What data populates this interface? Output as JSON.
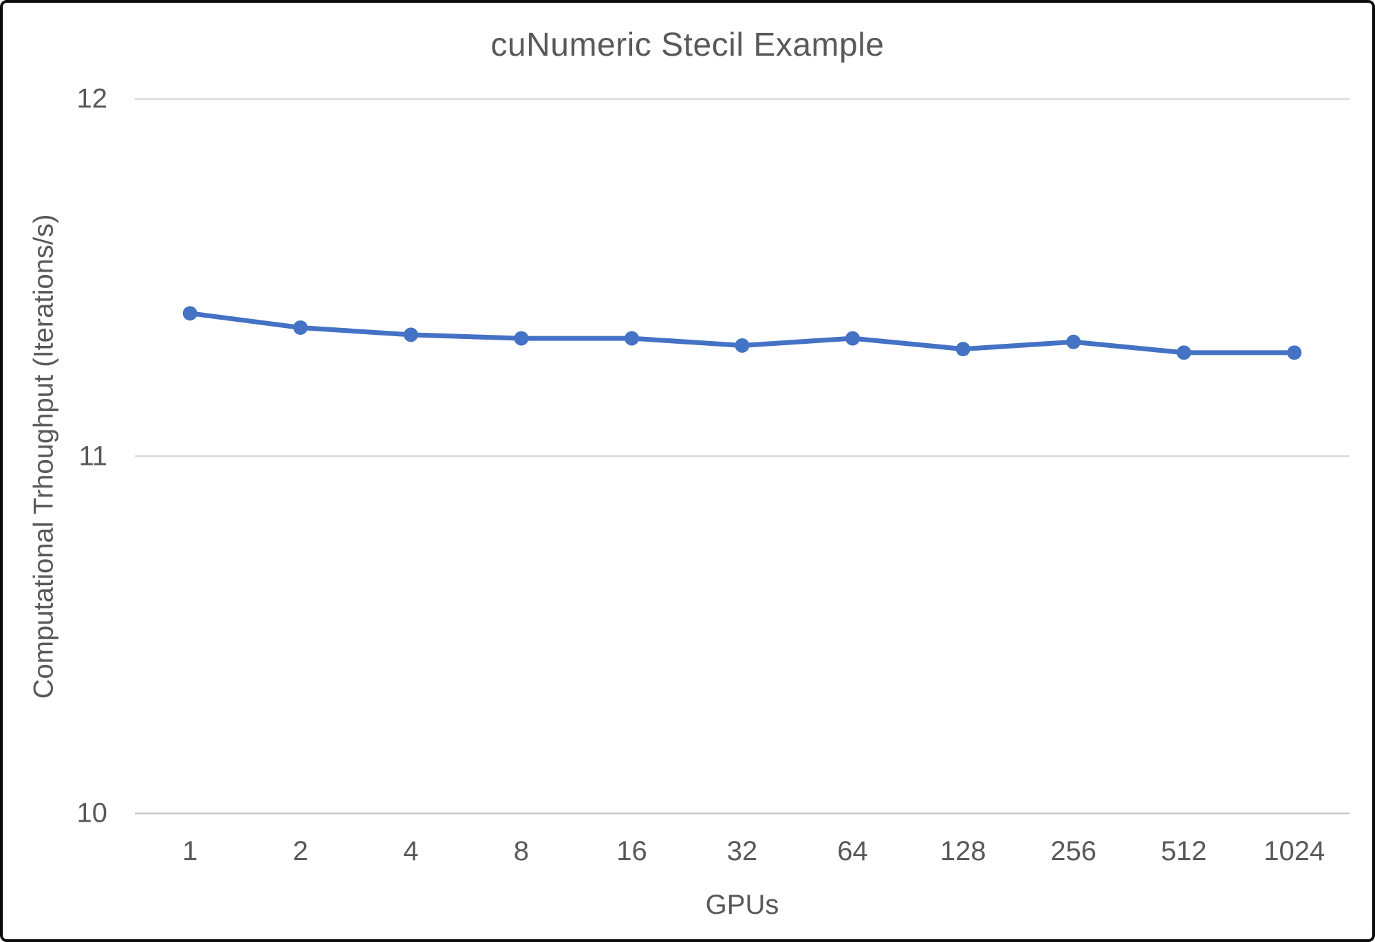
{
  "chart_data": {
    "type": "line",
    "title": "cuNumeric Stecil Example",
    "xlabel": "GPUs",
    "ylabel": "Computational Trhoughput (Iterations/s)",
    "categories": [
      "1",
      "2",
      "4",
      "8",
      "16",
      "32",
      "64",
      "128",
      "256",
      "512",
      "1024"
    ],
    "values": [
      11.4,
      11.36,
      11.34,
      11.33,
      11.33,
      11.31,
      11.33,
      11.3,
      11.32,
      11.29,
      11.29
    ],
    "ylim": [
      10,
      12
    ],
    "yticks": [
      12,
      11,
      10
    ],
    "grid": true,
    "legend": "none",
    "line_color": "#4472C4",
    "marker_color": "#4472C4",
    "text_color": "#595959",
    "gridline_color": "#D9D9D9",
    "axisline_color": "#C6C6C6"
  }
}
